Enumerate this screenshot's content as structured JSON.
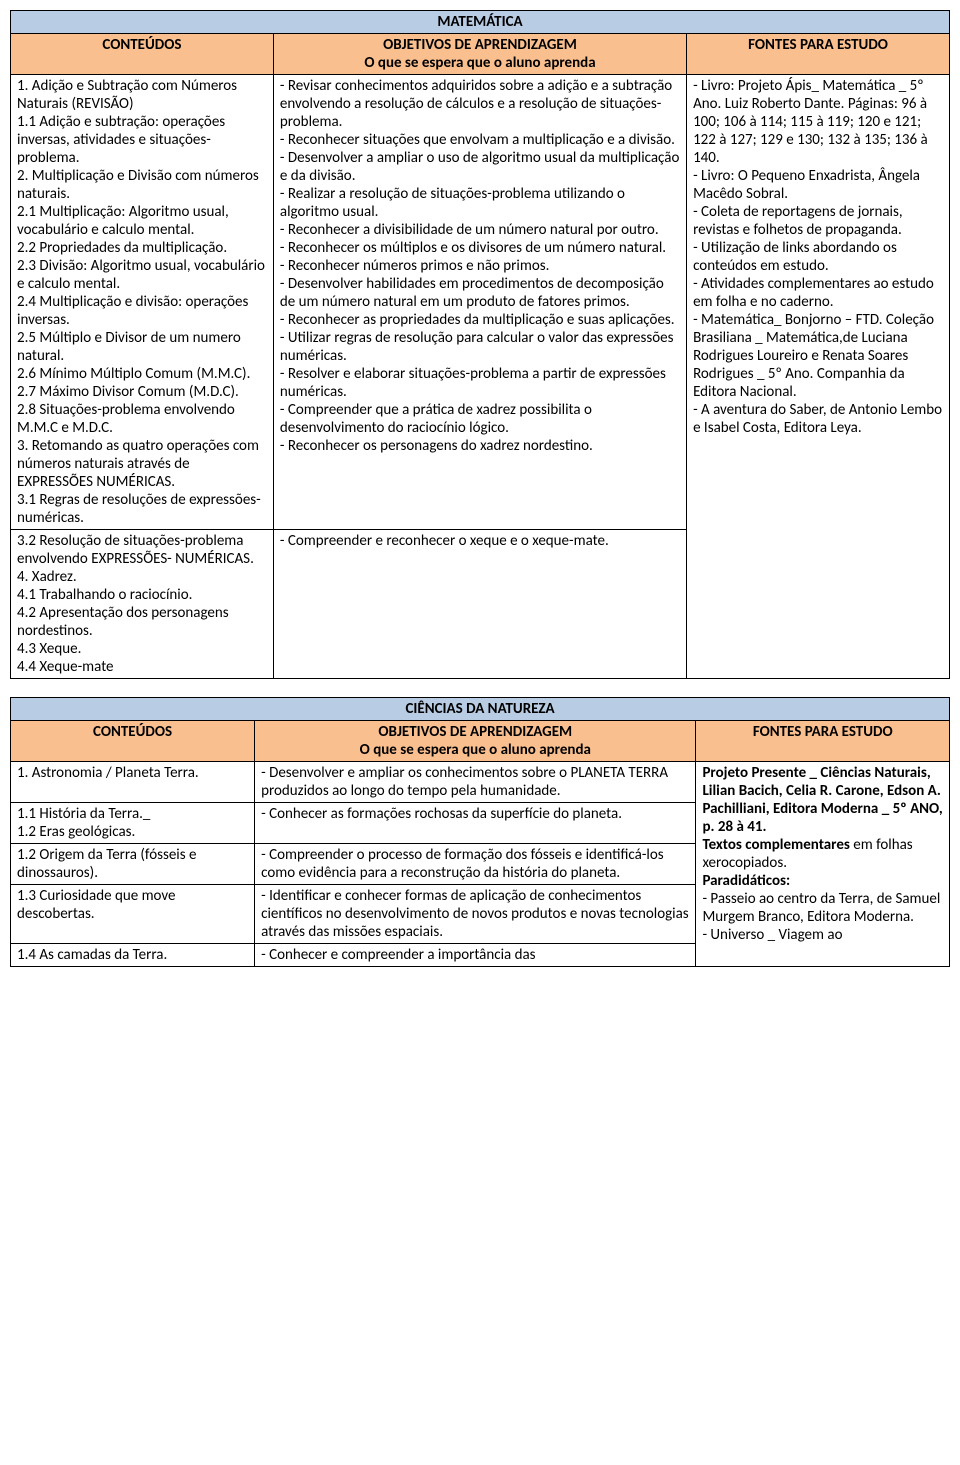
{
  "colors": {
    "title_bg": "#b8cce4",
    "header_bg": "#fabf8f",
    "border": "#000000",
    "text": "#000000",
    "page_bg": "#ffffff"
  },
  "table1": {
    "title": "MATEMÁTICA",
    "headers": {
      "col1": "CONTEÚDOS",
      "col2_line1": "OBJETIVOS DE APRENDIZAGEM",
      "col2_line2": "O que se espera que o aluno aprenda",
      "col3": "FONTES PARA ESTUDO"
    },
    "row1": {
      "conteudos": "1. Adição e Subtração com Números Naturais (REVISÃO)\n1.1 Adição e subtração: operações inversas, atividades e situações-problema.\n2. Multiplicação e Divisão com números naturais.\n2.1 Multiplicação: Algoritmo usual, vocabulário e calculo mental.\n2.2 Propriedades da multiplicação.\n2.3 Divisão:  Algoritmo usual, vocabulário e calculo mental.\n2.4 Multiplicação e divisão: operações inversas.\n2.5 Múltiplo e Divisor de um numero natural.\n2.6 Mínimo Múltiplo Comum (M.M.C).\n2.7 Máximo Divisor Comum (M.D.C).\n2.8 Situações-problema envolvendo M.M.C e M.D.C.\n3. Retomando as quatro operações com números naturais através de EXPRESSÕES NUMÉRICAS.\n3.1 Regras de resoluções de expressões-numéricas.",
      "objetivos": "- Revisar conhecimentos adquiridos sobre a adição e a subtração envolvendo a resolução de cálculos e a resolução de situações-problema.\n- Reconhecer situações que envolvam a multiplicação e a divisão.\n- Desenvolver a ampliar o uso de algoritmo usual da multiplicação e da divisão.\n- Realizar a resolução de situações-problema utilizando o algoritmo usual.\n- Reconhecer a divisibilidade de um número natural por outro.\n- Reconhecer os múltiplos e os divisores de um número natural.\n- Reconhecer números primos e não primos.\n- Desenvolver habilidades em procedimentos de decomposição de um número natural em um produto de fatores primos.\n- Reconhecer as propriedades da multiplicação e suas aplicações.\n- Utilizar regras de resolução para calcular o valor das expressões numéricas.\n- Resolver e elaborar situações-problema a partir de expressões numéricas.\n- Compreender que a prática de xadrez possibilita o desenvolvimento do raciocínio lógico.\n- Reconhecer os personagens do xadrez nordestino.",
      "fontes": "- Livro: Projeto Ápis_ Matemática _ 5º Ano. Luiz Roberto Dante. Páginas: 96 à 100; 106 à 114; 115 à 119; 120 e 121; 122 à 127; 129 e 130; 132 à 135; 136 à 140.\n- Livro: O Pequeno Enxadrista, Ângela Macêdo Sobral.\n- Coleta de reportagens de jornais, revistas e folhetos de propaganda.\n- Utilização de links abordando os conteúdos em estudo.\n- Atividades complementares ao estudo em folha e no caderno.\n- Matemática_ Bonjorno – FTD. Coleção Brasiliana _ Matemática,de Luciana Rodrigues Loureiro e Renata Soares Rodrigues _ 5º Ano. Companhia da Editora Nacional.\n- A aventura do Saber, de Antonio Lembo e Isabel Costa, Editora Leya."
    },
    "row2": {
      "conteudos": "3.2 Resolução de situações-problema envolvendo EXPRESSÕES- NUMÉRICAS.\n4. Xadrez.\n4.1 Trabalhando o raciocínio.\n4.2 Apresentação dos personagens nordestinos.\n4.3 Xeque.\n4.4 Xeque-mate",
      "objetivos": "- Compreender e reconhecer o xeque e o xeque-mate."
    }
  },
  "table2": {
    "title": "CIÊNCIAS DA NATUREZA",
    "headers": {
      "col1": "CONTEÚDOS",
      "col2_line1": "OBJETIVOS DE APRENDIZAGEM",
      "col2_line2": "O que se espera que o aluno aprenda",
      "col3": "FONTES PARA ESTUDO"
    },
    "rows": [
      {
        "c": "1. Astronomia / Planeta Terra.",
        "o": "- Desenvolver e ampliar os conhecimentos sobre o PLANETA TERRA produzidos ao longo do tempo pela humanidade."
      },
      {
        "c": "1.1  História da Terra._\n1.2  Eras geológicas.",
        "o": "- Conhecer as formações rochosas da superfície do planeta."
      },
      {
        "c": "1.2 Origem da Terra (fósseis e dinossauros).",
        "o": "- Compreender o processo de formação dos fósseis e identificá-los como evidência para a reconstrução da história do planeta."
      },
      {
        "c": "1.3 Curiosidade que move descobertas.",
        "o": "- Identificar e conhecer formas de aplicação de conhecimentos científicos no desenvolvimento de novos produtos e novas tecnologias através das missões espaciais."
      },
      {
        "c": "1.4 As camadas da Terra.",
        "o": "- Conhecer e compreender a importância das"
      }
    ],
    "fontes_bold": "Projeto Presente _ Ciências Naturais, Lilian Bacich, Celia R. Carone, Edson A. Pachilliani, Editora Moderna _ 5º ANO, p. 28 à 41.\nTextos complementares",
    "fontes_plain1": " em folhas xerocopiados.",
    "fontes_bold2": "Paradidáticos:",
    "fontes_plain2": "\n- Passeio ao centro da Terra, de Samuel Murgem Branco, Editora Moderna.\n- Universo _ Viagem ao"
  }
}
